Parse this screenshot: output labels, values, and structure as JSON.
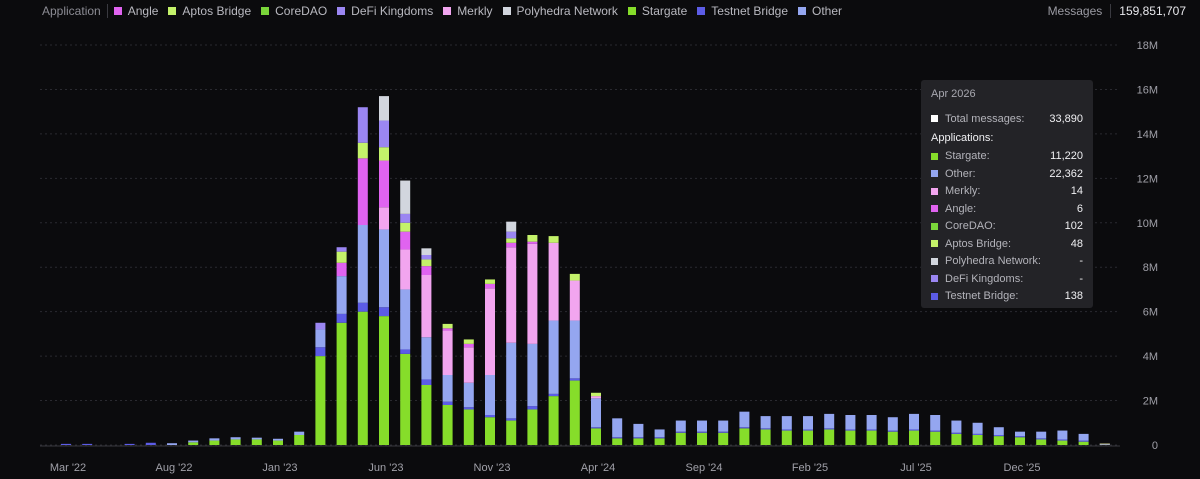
{
  "legend": {
    "title": "Application",
    "items": [
      {
        "label": "Angle",
        "color": "#e063f0"
      },
      {
        "label": "Aptos Bridge",
        "color": "#c4f26a"
      },
      {
        "label": "CoreDAO",
        "color": "#7ad63a"
      },
      {
        "label": "DeFi Kingdoms",
        "color": "#9b86f2"
      },
      {
        "label": "Merkly",
        "color": "#f2a5ef"
      },
      {
        "label": "Polyhedra Network",
        "color": "#d2d6de"
      },
      {
        "label": "Stargate",
        "color": "#86dd2a"
      },
      {
        "label": "Testnet Bridge",
        "color": "#5c5ce6"
      },
      {
        "label": "Other",
        "color": "#94a6f0"
      }
    ]
  },
  "messages": {
    "label": "Messages",
    "value": "159,851,707"
  },
  "tooltip": {
    "title": "Apr 2026",
    "total_label": "Total messages:",
    "total_value": "33,890",
    "apps_label": "Applications:",
    "rows": [
      {
        "name": "Stargate:",
        "value": "11,220",
        "color": "#86dd2a"
      },
      {
        "name": "Other:",
        "value": "22,362",
        "color": "#94a6f0"
      },
      {
        "name": "Merkly:",
        "value": "14",
        "color": "#f2a5ef"
      },
      {
        "name": "Angle:",
        "value": "6",
        "color": "#e063f0"
      },
      {
        "name": "CoreDAO:",
        "value": "102",
        "color": "#7ad63a"
      },
      {
        "name": "Aptos Bridge:",
        "value": "48",
        "color": "#c4f26a"
      },
      {
        "name": "Polyhedra Network:",
        "value": "-",
        "color": "#d2d6de"
      },
      {
        "name": "DeFi Kingdoms:",
        "value": "-",
        "color": "#9b86f2"
      },
      {
        "name": "Testnet Bridge:",
        "value": "138",
        "color": "#5c5ce6"
      }
    ]
  },
  "chart_data": {
    "type": "bar",
    "stacked": true,
    "ylim": [
      0,
      18000000
    ],
    "yticks": [
      {
        "value": 0,
        "label": "0"
      },
      {
        "value": 2000000,
        "label": "2M"
      },
      {
        "value": 4000000,
        "label": "4M"
      },
      {
        "value": 6000000,
        "label": "6M"
      },
      {
        "value": 8000000,
        "label": "8M"
      },
      {
        "value": 10000000,
        "label": "10M"
      },
      {
        "value": 12000000,
        "label": "12M"
      },
      {
        "value": 14000000,
        "label": "14M"
      },
      {
        "value": 16000000,
        "label": "16M"
      },
      {
        "value": 18000000,
        "label": "18M"
      }
    ],
    "xtick_labels": [
      {
        "label": "Mar '22",
        "index": 0
      },
      {
        "label": "Aug '22",
        "index": 5
      },
      {
        "label": "Jan '23",
        "index": 10
      },
      {
        "label": "Jun '23",
        "index": 15
      },
      {
        "label": "Nov '23",
        "index": 20
      },
      {
        "label": "Apr '24",
        "index": 25
      },
      {
        "label": "Sep '24",
        "index": 30
      },
      {
        "label": "Feb '25",
        "index": 35
      },
      {
        "label": "Jul '25",
        "index": 40
      },
      {
        "label": "Dec '25",
        "index": 45
      }
    ],
    "categories": [
      "Mar '22",
      "Apr '22",
      "May '22",
      "Jun '22",
      "Jul '22",
      "Aug '22",
      "Sep '22",
      "Oct '22",
      "Nov '22",
      "Dec '22",
      "Jan '23",
      "Feb '23",
      "Mar '23",
      "Apr '23",
      "May '23",
      "Jun '23",
      "Jul '23",
      "Aug '23",
      "Sep '23",
      "Oct '23",
      "Nov '23",
      "Dec '23",
      "Jan '24",
      "Feb '24",
      "Mar '24",
      "Apr '24",
      "May '24",
      "Jun '24",
      "Jul '24",
      "Aug '24",
      "Sep '24",
      "Oct '24",
      "Nov '24",
      "Dec '24",
      "Jan '25",
      "Feb '25",
      "Mar '25",
      "Apr '25",
      "May '25",
      "Jun '25",
      "Jul '25",
      "Aug '25",
      "Sep '25",
      "Oct '25",
      "Nov '25",
      "Dec '25",
      "Jan '26",
      "Feb '26",
      "Mar '26",
      "Apr '26"
    ],
    "series": [
      {
        "name": "Stargate",
        "color": "#86dd2a",
        "values": [
          0,
          0,
          0,
          0,
          0,
          0,
          120000,
          200000,
          250000,
          250000,
          200000,
          450000,
          4000000,
          5500000,
          6000000,
          5800000,
          4100000,
          2700000,
          1800000,
          1600000,
          1250000,
          1100000,
          1600000,
          2200000,
          2900000,
          750000,
          300000,
          300000,
          300000,
          550000,
          550000,
          550000,
          750000,
          700000,
          650000,
          650000,
          700000,
          650000,
          650000,
          600000,
          650000,
          600000,
          500000,
          450000,
          400000,
          350000,
          250000,
          200000,
          150000,
          11220
        ]
      },
      {
        "name": "CoreDAO",
        "color": "#7ad63a",
        "values": [
          0,
          0,
          0,
          0,
          0,
          0,
          0,
          0,
          0,
          0,
          0,
          0,
          0,
          0,
          0,
          0,
          0,
          0,
          0,
          0,
          0,
          0,
          0,
          0,
          0,
          0,
          0,
          0,
          0,
          0,
          0,
          0,
          0,
          0,
          0,
          0,
          0,
          0,
          0,
          0,
          0,
          0,
          0,
          0,
          0,
          0,
          0,
          0,
          0,
          102
        ]
      },
      {
        "name": "Testnet Bridge",
        "color": "#5c5ce6",
        "values": [
          50000,
          50000,
          0,
          50000,
          100000,
          0,
          0,
          0,
          0,
          0,
          0,
          0,
          400000,
          400000,
          400000,
          400000,
          200000,
          250000,
          150000,
          100000,
          100000,
          100000,
          150000,
          100000,
          100000,
          50000,
          50000,
          50000,
          50000,
          50000,
          50000,
          50000,
          50000,
          50000,
          50000,
          50000,
          50000,
          50000,
          50000,
          50000,
          50000,
          50000,
          50000,
          50000,
          50000,
          50000,
          50000,
          50000,
          50000,
          138
        ]
      },
      {
        "name": "Other",
        "color": "#94a6f0",
        "values": [
          0,
          0,
          0,
          0,
          0,
          80000,
          80000,
          100000,
          100000,
          80000,
          80000,
          150000,
          800000,
          1700000,
          3500000,
          3500000,
          2700000,
          1900000,
          1200000,
          1100000,
          1800000,
          3400000,
          2800000,
          3300000,
          2600000,
          1300000,
          850000,
          600000,
          350000,
          500000,
          500000,
          500000,
          700000,
          550000,
          600000,
          600000,
          650000,
          650000,
          650000,
          600000,
          700000,
          700000,
          550000,
          500000,
          350000,
          200000,
          300000,
          400000,
          300000,
          22362
        ]
      },
      {
        "name": "Merkly",
        "color": "#f2a5ef",
        "values": [
          0,
          0,
          0,
          0,
          0,
          0,
          0,
          0,
          0,
          0,
          0,
          0,
          0,
          0,
          0,
          1000000,
          1800000,
          2800000,
          2000000,
          1600000,
          3900000,
          4300000,
          4500000,
          3500000,
          1800000,
          100000,
          0,
          0,
          0,
          0,
          0,
          0,
          0,
          0,
          0,
          0,
          0,
          0,
          0,
          0,
          0,
          0,
          0,
          0,
          0,
          0,
          0,
          0,
          0,
          14
        ]
      },
      {
        "name": "Angle",
        "color": "#e063f0",
        "values": [
          0,
          0,
          0,
          0,
          0,
          0,
          0,
          0,
          0,
          0,
          0,
          0,
          0,
          600000,
          3000000,
          2100000,
          800000,
          400000,
          100000,
          150000,
          200000,
          200000,
          100000,
          0,
          0,
          0,
          0,
          0,
          0,
          0,
          0,
          0,
          0,
          0,
          0,
          0,
          0,
          0,
          0,
          0,
          0,
          0,
          0,
          0,
          0,
          0,
          0,
          0,
          0,
          6
        ]
      },
      {
        "name": "Aptos Bridge",
        "color": "#c4f26a",
        "values": [
          0,
          0,
          0,
          0,
          0,
          0,
          0,
          0,
          0,
          0,
          0,
          0,
          0,
          500000,
          700000,
          600000,
          400000,
          300000,
          200000,
          200000,
          200000,
          200000,
          300000,
          300000,
          300000,
          150000,
          0,
          0,
          0,
          0,
          0,
          0,
          0,
          0,
          0,
          0,
          0,
          0,
          0,
          0,
          0,
          0,
          0,
          0,
          0,
          0,
          0,
          0,
          0,
          48
        ]
      },
      {
        "name": "DeFi Kingdoms",
        "color": "#9b86f2",
        "values": [
          0,
          0,
          0,
          0,
          0,
          0,
          0,
          0,
          0,
          0,
          0,
          0,
          300000,
          200000,
          1600000,
          1200000,
          400000,
          200000,
          0,
          0,
          0,
          300000,
          0,
          0,
          0,
          0,
          0,
          0,
          0,
          0,
          0,
          0,
          0,
          0,
          0,
          0,
          0,
          0,
          0,
          0,
          0,
          0,
          0,
          0,
          0,
          0,
          0,
          0,
          0,
          0
        ]
      },
      {
        "name": "Polyhedra Network",
        "color": "#d2d6de",
        "values": [
          0,
          0,
          0,
          0,
          0,
          0,
          0,
          0,
          0,
          0,
          0,
          0,
          0,
          0,
          0,
          1100000,
          1500000,
          300000,
          0,
          0,
          0,
          450000,
          0,
          0,
          0,
          0,
          0,
          0,
          0,
          0,
          0,
          0,
          0,
          0,
          0,
          0,
          0,
          0,
          0,
          0,
          0,
          0,
          0,
          0,
          0,
          0,
          0,
          0,
          0,
          0
        ]
      }
    ]
  }
}
